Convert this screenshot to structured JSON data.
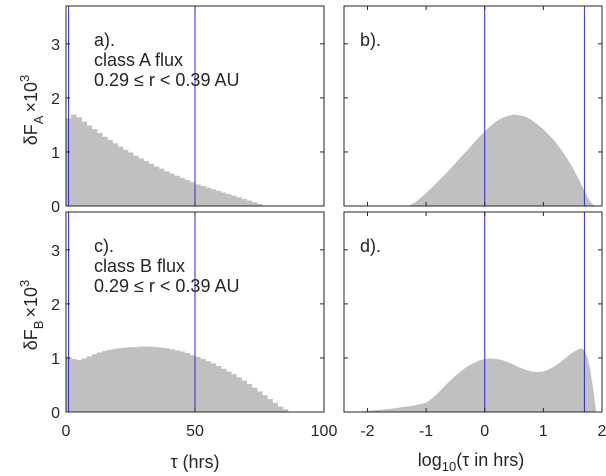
{
  "colors": {
    "fill": "#c0c0c0",
    "vline": "#2a2acc",
    "axis": "#262626",
    "background": "#ffffff"
  },
  "ylabels": {
    "top": {
      "base": "δF",
      "sub": "A",
      "mult": "×10",
      "exp": "3"
    },
    "bottom": {
      "base": "δF",
      "sub": "B",
      "mult": "×10",
      "exp": "3"
    }
  },
  "xlabels": {
    "left": {
      "text": "τ (hrs)"
    },
    "right": {
      "pre": "log",
      "sub": "10",
      "mid": "(τ in hrs)"
    }
  },
  "chart_data": [
    {
      "id": "a",
      "type": "bar",
      "annotations": [
        "a).",
        "class A flux",
        "0.29 ≤ r < 0.39 AU"
      ],
      "xlim": [
        0,
        100
      ],
      "ylim": [
        0,
        3.7
      ],
      "xticks": [
        0,
        50,
        100
      ],
      "yticks": [
        0,
        1,
        2,
        3
      ],
      "vlines": [
        1,
        50
      ],
      "bin_width": 2,
      "x": [
        0,
        2,
        4,
        6,
        8,
        10,
        12,
        14,
        16,
        18,
        20,
        22,
        24,
        26,
        28,
        30,
        32,
        34,
        36,
        38,
        40,
        42,
        44,
        46,
        48,
        50,
        52,
        54,
        56,
        58,
        60,
        62,
        64,
        66,
        68,
        70,
        72,
        74
      ],
      "values": [
        1.62,
        1.69,
        1.64,
        1.56,
        1.49,
        1.42,
        1.35,
        1.28,
        1.22,
        1.16,
        1.1,
        1.04,
        0.99,
        0.93,
        0.88,
        0.83,
        0.78,
        0.73,
        0.69,
        0.64,
        0.6,
        0.56,
        0.52,
        0.48,
        0.44,
        0.4,
        0.37,
        0.34,
        0.31,
        0.28,
        0.25,
        0.22,
        0.19,
        0.16,
        0.13,
        0.1,
        0.07,
        0.04
      ]
    },
    {
      "id": "b",
      "type": "area",
      "annotations": [
        "b)."
      ],
      "xlim": [
        -2.4,
        2.0
      ],
      "ylim": [
        0,
        3.7
      ],
      "xticks": [
        -2,
        -1,
        0,
        1,
        2
      ],
      "yticks": [
        0,
        1,
        2,
        3
      ],
      "vlines": [
        0,
        1.7
      ],
      "x": [
        -1.3,
        -1.2,
        -1.1,
        -1.0,
        -0.9,
        -0.8,
        -0.7,
        -0.6,
        -0.5,
        -0.4,
        -0.3,
        -0.2,
        -0.1,
        0.0,
        0.1,
        0.2,
        0.3,
        0.4,
        0.5,
        0.6,
        0.7,
        0.8,
        0.9,
        1.0,
        1.1,
        1.2,
        1.3,
        1.4,
        1.5,
        1.6,
        1.7,
        1.75,
        1.8,
        1.85,
        1.9
      ],
      "values": [
        0.0,
        0.06,
        0.14,
        0.24,
        0.34,
        0.45,
        0.56,
        0.67,
        0.79,
        0.91,
        1.03,
        1.15,
        1.27,
        1.38,
        1.48,
        1.57,
        1.63,
        1.67,
        1.69,
        1.68,
        1.65,
        1.59,
        1.51,
        1.42,
        1.31,
        1.19,
        1.05,
        0.89,
        0.71,
        0.5,
        0.28,
        0.17,
        0.08,
        0.02,
        0.0
      ]
    },
    {
      "id": "c",
      "type": "bar",
      "annotations": [
        "c).",
        "class B flux",
        "0.29 ≤ r < 0.39 AU"
      ],
      "xlim": [
        0,
        100
      ],
      "ylim": [
        0,
        3.7
      ],
      "xticks": [
        0,
        50,
        100
      ],
      "yticks": [
        0,
        1,
        2,
        3
      ],
      "vlines": [
        1,
        50
      ],
      "bin_width": 2,
      "x": [
        0,
        2,
        4,
        6,
        8,
        10,
        12,
        14,
        16,
        18,
        20,
        22,
        24,
        26,
        28,
        30,
        32,
        34,
        36,
        38,
        40,
        42,
        44,
        46,
        48,
        50,
        52,
        54,
        56,
        58,
        60,
        62,
        64,
        66,
        68,
        70,
        72,
        74,
        76,
        78,
        80,
        82,
        84
      ],
      "values": [
        1.02,
        0.98,
        0.96,
        0.99,
        1.03,
        1.07,
        1.1,
        1.13,
        1.15,
        1.17,
        1.18,
        1.19,
        1.2,
        1.2,
        1.21,
        1.21,
        1.21,
        1.2,
        1.19,
        1.18,
        1.16,
        1.14,
        1.12,
        1.09,
        1.05,
        1.02,
        0.98,
        0.94,
        0.9,
        0.85,
        0.8,
        0.75,
        0.7,
        0.64,
        0.58,
        0.52,
        0.45,
        0.38,
        0.31,
        0.24,
        0.17,
        0.1,
        0.05
      ]
    },
    {
      "id": "d",
      "type": "area",
      "annotations": [
        "d)."
      ],
      "xlim": [
        -2.4,
        2.0
      ],
      "ylim": [
        0,
        3.7
      ],
      "xticks": [
        -2,
        -1,
        0,
        1,
        2
      ],
      "yticks": [
        0,
        1,
        2,
        3
      ],
      "vlines": [
        0,
        1.7
      ],
      "x": [
        -2.2,
        -2.0,
        -1.8,
        -1.6,
        -1.4,
        -1.2,
        -1.0,
        -0.9,
        -0.8,
        -0.7,
        -0.6,
        -0.5,
        -0.4,
        -0.3,
        -0.2,
        -0.1,
        0.0,
        0.1,
        0.2,
        0.3,
        0.4,
        0.5,
        0.6,
        0.7,
        0.8,
        0.9,
        1.0,
        1.1,
        1.2,
        1.3,
        1.4,
        1.5,
        1.6,
        1.65,
        1.7,
        1.75,
        1.8,
        1.85,
        1.9
      ],
      "values": [
        0.0,
        0.02,
        0.04,
        0.06,
        0.09,
        0.12,
        0.17,
        0.25,
        0.35,
        0.46,
        0.57,
        0.67,
        0.76,
        0.84,
        0.9,
        0.95,
        0.98,
        0.99,
        0.98,
        0.96,
        0.92,
        0.87,
        0.82,
        0.78,
        0.75,
        0.74,
        0.75,
        0.79,
        0.85,
        0.93,
        1.02,
        1.1,
        1.16,
        1.18,
        1.14,
        1.02,
        0.78,
        0.42,
        0.0
      ]
    }
  ]
}
